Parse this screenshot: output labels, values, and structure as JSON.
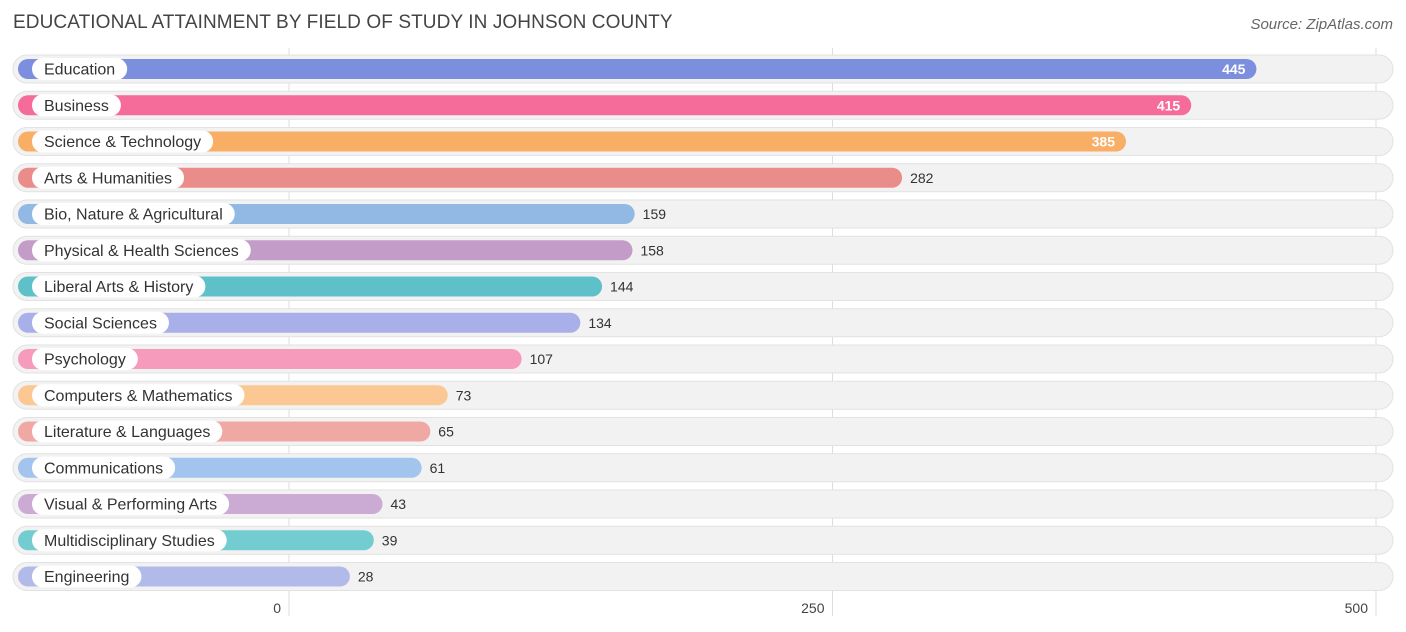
{
  "header": {
    "title": "EDUCATIONAL ATTAINMENT BY FIELD OF STUDY IN JOHNSON COUNTY",
    "source": "Source: ZipAtlas.com"
  },
  "chart_data": {
    "type": "bar",
    "orientation": "horizontal",
    "title": "EDUCATIONAL ATTAINMENT BY FIELD OF STUDY IN JOHNSON COUNTY",
    "xlabel": "",
    "ylabel": "",
    "xlim": [
      0,
      500
    ],
    "ticks": [
      0,
      250,
      500
    ],
    "grid": true,
    "categories": [
      "Education",
      "Business",
      "Science & Technology",
      "Arts & Humanities",
      "Bio, Nature & Agricultural",
      "Physical & Health Sciences",
      "Liberal Arts & History",
      "Social Sciences",
      "Psychology",
      "Computers & Mathematics",
      "Literature & Languages",
      "Communications",
      "Visual & Performing Arts",
      "Multidisciplinary Studies",
      "Engineering"
    ],
    "values": [
      445,
      415,
      385,
      282,
      159,
      158,
      144,
      134,
      107,
      73,
      65,
      61,
      43,
      39,
      28
    ],
    "colors": [
      "#7b8fde",
      "#f56b9a",
      "#f9ae66",
      "#ea8c8a",
      "#92b8e4",
      "#c39cc7",
      "#5ec1c9",
      "#a9afe8",
      "#f69bbb",
      "#fbc893",
      "#f0a8a4",
      "#a3c4ec",
      "#cbaad3",
      "#72ccd0",
      "#b2baea"
    ]
  }
}
